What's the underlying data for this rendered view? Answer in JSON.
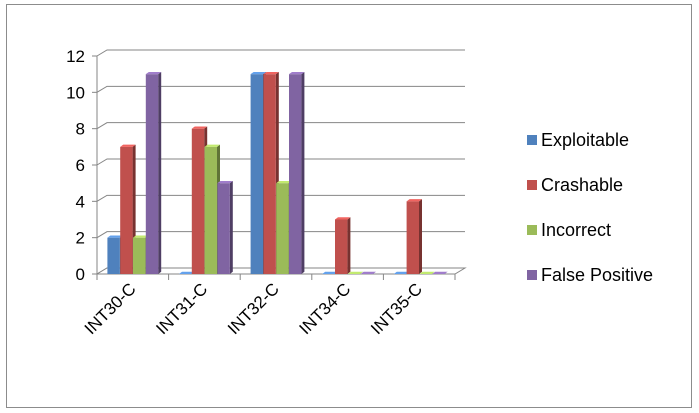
{
  "chart_data": {
    "type": "bar",
    "style": "3d-clustered-column",
    "categories": [
      "INT30-C",
      "INT31-C",
      "INT32-C",
      "INT34-C",
      "INT35-C"
    ],
    "series": [
      {
        "name": "Exploitable",
        "color": "#4f81bd",
        "values": [
          2,
          0,
          11,
          0,
          0
        ]
      },
      {
        "name": "Crashable",
        "color": "#c0504d",
        "values": [
          7,
          8,
          11,
          3,
          4
        ]
      },
      {
        "name": "Incorrect",
        "color": "#9bbb59",
        "values": [
          2,
          7,
          5,
          0,
          0
        ]
      },
      {
        "name": "False Positive",
        "color": "#8064a2",
        "values": [
          11,
          5,
          11,
          0,
          0
        ]
      }
    ],
    "ylim": [
      0,
      12
    ],
    "yticks": [
      0,
      2,
      4,
      6,
      8,
      10,
      12
    ],
    "grid": true,
    "legend_position": "right"
  }
}
